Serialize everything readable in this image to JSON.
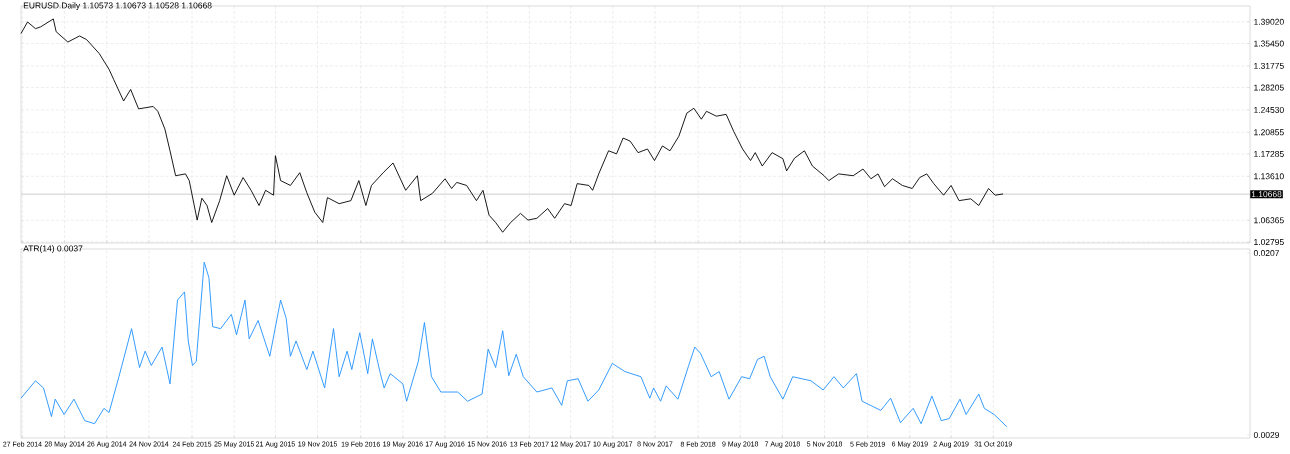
{
  "chart_data": [
    {
      "type": "line",
      "title": "EURUSD.Daily  1.10573 1.10673 1.10528 1.10668",
      "xlim": [
        "2014-02-24",
        "2021-05-01"
      ],
      "xticks": [
        {
          "value": "2014-02-27",
          "label": null
        },
        {
          "value": "2014-05-28",
          "label": null
        },
        {
          "value": "2014-08-26",
          "label": null
        },
        {
          "value": "2014-11-24",
          "label": null
        },
        {
          "value": "2015-02-24",
          "label": null
        },
        {
          "value": "2015-05-25",
          "label": null
        },
        {
          "value": "2015-08-21",
          "label": null
        },
        {
          "value": "2015-11-19",
          "label": null
        },
        {
          "value": "2016-02-19",
          "label": null
        },
        {
          "value": "2016-05-19",
          "label": null
        },
        {
          "value": "2016-08-17",
          "label": null
        },
        {
          "value": "2016-11-15",
          "label": null
        },
        {
          "value": "2017-02-13",
          "label": null
        },
        {
          "value": "2017-05-12",
          "label": null
        },
        {
          "value": "2017-08-10",
          "label": null
        },
        {
          "value": "2017-11-08",
          "label": null
        },
        {
          "value": "2018-02-08",
          "label": null
        },
        {
          "value": "2018-05-09",
          "label": null
        },
        {
          "value": "2018-08-07",
          "label": null
        },
        {
          "value": "2018-11-05",
          "label": null
        },
        {
          "value": "2019-02-05",
          "label": null
        },
        {
          "value": "2019-05-06",
          "label": null
        },
        {
          "value": "2019-08-02",
          "label": null
        },
        {
          "value": "2019-10-31",
          "label": null
        }
      ],
      "ylim": [
        1.0263,
        1.4163
      ],
      "yticks": [
        {
          "value": 1.02795,
          "label": "1.02795"
        },
        {
          "value": 1.06365,
          "label": "1.06365"
        },
        {
          "value": 1.1361,
          "label": "1.13610"
        },
        {
          "value": 1.17285,
          "label": "1.17285"
        },
        {
          "value": 1.20855,
          "label": "1.20855"
        },
        {
          "value": 1.2453,
          "label": "1.24530"
        },
        {
          "value": 1.28205,
          "label": "1.28205"
        },
        {
          "value": 1.31775,
          "label": "1.31775"
        },
        {
          "value": 1.3545,
          "label": "1.35450"
        },
        {
          "value": 1.3902,
          "label": "1.39020"
        }
      ],
      "tick_labels": "y",
      "grid": true,
      "ref_lines": [
        {
          "axis": "y",
          "value": 1.10668,
          "label": "1.10668",
          "color": "#c0c0c0"
        }
      ],
      "series": [
        {
          "color": "#000000",
          "x": [
            "2014-02-24",
            "2014-03-10",
            "2014-03-27",
            "2014-04-07",
            "2014-05-04",
            "2014-05-10",
            "2014-06-04",
            "2014-06-29",
            "2014-07-14",
            "2014-08-10",
            "2014-08-31",
            "2014-09-10",
            "2014-10-01",
            "2014-10-16",
            "2014-11-02",
            "2014-12-03",
            "2014-12-13",
            "2014-12-28",
            "2015-01-08",
            "2015-01-20",
            "2015-02-10",
            "2015-02-18",
            "2015-03-07",
            "2015-03-17",
            "2015-03-28",
            "2015-04-07",
            "2015-04-24",
            "2015-05-09",
            "2015-05-25",
            "2015-06-13",
            "2015-06-30",
            "2015-07-17",
            "2015-07-31",
            "2015-08-17",
            "2015-08-21",
            "2015-09-01",
            "2015-09-22",
            "2015-10-12",
            "2015-10-27",
            "2015-11-13",
            "2015-11-30",
            "2015-12-10",
            "2016-01-04",
            "2016-01-29",
            "2016-02-15",
            "2016-03-01",
            "2016-03-13",
            "2016-04-07",
            "2016-04-28",
            "2016-05-25",
            "2016-06-19",
            "2016-06-26",
            "2016-07-21",
            "2016-08-17",
            "2016-08-31",
            "2016-09-11",
            "2016-10-02",
            "2016-10-23",
            "2016-11-06",
            "2016-11-19",
            "2016-12-03",
            "2016-12-18",
            "2017-01-04",
            "2017-01-25",
            "2017-02-10",
            "2017-03-01",
            "2017-03-24",
            "2017-04-08",
            "2017-04-29",
            "2017-05-13",
            "2017-05-26",
            "2017-06-20",
            "2017-06-28",
            "2017-07-11",
            "2017-08-01",
            "2017-08-18",
            "2017-09-01",
            "2017-09-16",
            "2017-10-03",
            "2017-10-23",
            "2017-11-07",
            "2017-11-24",
            "2017-12-10",
            "2017-12-29",
            "2018-01-15",
            "2018-01-30",
            "2018-02-15",
            "2018-02-26",
            "2018-03-19",
            "2018-04-09",
            "2018-04-25",
            "2018-05-14",
            "2018-05-31",
            "2018-06-10",
            "2018-06-25",
            "2018-07-16",
            "2018-08-08",
            "2018-08-16",
            "2018-09-02",
            "2018-09-23",
            "2018-10-10",
            "2018-11-04",
            "2018-11-14",
            "2018-12-05",
            "2019-01-05",
            "2019-01-26",
            "2019-02-12",
            "2019-02-27",
            "2019-03-13",
            "2019-03-30",
            "2019-04-20",
            "2019-05-11",
            "2019-05-27",
            "2019-06-11",
            "2019-06-26",
            "2019-07-17",
            "2019-08-02",
            "2019-08-19",
            "2019-09-13",
            "2019-09-30",
            "2019-10-21",
            "2019-11-04",
            "2019-11-21"
          ],
          "values": [
            1.371,
            1.39,
            1.379,
            1.382,
            1.395,
            1.374,
            1.357,
            1.367,
            1.361,
            1.338,
            1.312,
            1.295,
            1.26,
            1.279,
            1.247,
            1.251,
            1.243,
            1.214,
            1.178,
            1.137,
            1.14,
            1.129,
            1.064,
            1.1,
            1.088,
            1.06,
            1.096,
            1.137,
            1.105,
            1.134,
            1.113,
            1.088,
            1.113,
            1.105,
            1.17,
            1.129,
            1.121,
            1.142,
            1.109,
            1.077,
            1.06,
            1.101,
            1.091,
            1.096,
            1.129,
            1.088,
            1.121,
            1.142,
            1.158,
            1.113,
            1.137,
            1.096,
            1.108,
            1.132,
            1.116,
            1.126,
            1.121,
            1.096,
            1.113,
            1.072,
            1.06,
            1.044,
            1.06,
            1.075,
            1.064,
            1.067,
            1.083,
            1.067,
            1.091,
            1.088,
            1.124,
            1.121,
            1.113,
            1.14,
            1.178,
            1.173,
            1.199,
            1.194,
            1.175,
            1.181,
            1.162,
            1.186,
            1.178,
            1.202,
            1.24,
            1.248,
            1.23,
            1.243,
            1.235,
            1.238,
            1.21,
            1.181,
            1.162,
            1.175,
            1.153,
            1.175,
            1.165,
            1.145,
            1.166,
            1.178,
            1.153,
            1.137,
            1.129,
            1.14,
            1.137,
            1.148,
            1.132,
            1.14,
            1.119,
            1.132,
            1.121,
            1.116,
            1.134,
            1.14,
            1.124,
            1.105,
            1.121,
            1.096,
            1.099,
            1.088,
            1.116,
            1.105,
            1.107
          ]
        }
      ]
    },
    {
      "type": "line",
      "title": "ATR(14) 0.0037",
      "xlim": [
        "2014-02-24",
        "2021-05-01"
      ],
      "xticks": [
        {
          "value": "2014-02-27",
          "label": "27 Feb 2014"
        },
        {
          "value": "2014-05-28",
          "label": "28 May 2014"
        },
        {
          "value": "2014-08-26",
          "label": "26 Aug 2014"
        },
        {
          "value": "2014-11-24",
          "label": "24 Nov 2014"
        },
        {
          "value": "2015-02-24",
          "label": "24 Feb 2015"
        },
        {
          "value": "2015-05-25",
          "label": "25 May 2015"
        },
        {
          "value": "2015-08-21",
          "label": "21 Aug 2015"
        },
        {
          "value": "2015-11-19",
          "label": "19 Nov 2015"
        },
        {
          "value": "2016-02-19",
          "label": "19 Feb 2016"
        },
        {
          "value": "2016-05-19",
          "label": "19 May 2016"
        },
        {
          "value": "2016-08-17",
          "label": "17 Aug 2016"
        },
        {
          "value": "2016-11-15",
          "label": "15 Nov 2016"
        },
        {
          "value": "2017-02-13",
          "label": "13 Feb 2017"
        },
        {
          "value": "2017-05-12",
          "label": "12 May 2017"
        },
        {
          "value": "2017-08-10",
          "label": "10 Aug 2017"
        },
        {
          "value": "2017-11-08",
          "label": "8 Nov 2017"
        },
        {
          "value": "2018-02-08",
          "label": "8 Feb 2018"
        },
        {
          "value": "2018-05-09",
          "label": "9 May 2018"
        },
        {
          "value": "2018-08-07",
          "label": "7 Aug 2018"
        },
        {
          "value": "2018-11-05",
          "label": "5 Nov 2018"
        },
        {
          "value": "2019-02-05",
          "label": "5 Feb 2019"
        },
        {
          "value": "2019-05-06",
          "label": "6 May 2019"
        },
        {
          "value": "2019-08-02",
          "label": "2 Aug 2019"
        },
        {
          "value": "2019-10-31",
          "label": "31 Oct 2019"
        }
      ],
      "ylim": [
        0.0026,
        0.0211
      ],
      "yticks": [
        0.0029,
        0.0207
      ],
      "grid": "x",
      "series": [
        {
          "color": "#1e90ff",
          "x": [
            "2014-02-24",
            "2014-03-27",
            "2014-04-13",
            "2014-04-30",
            "2014-05-08",
            "2014-05-27",
            "2014-06-17",
            "2014-07-10",
            "2014-07-31",
            "2014-08-20",
            "2014-08-31",
            "2014-09-21",
            "2014-10-18",
            "2014-11-04",
            "2014-11-16",
            "2014-11-29",
            "2014-12-22",
            "2015-01-08",
            "2015-01-24",
            "2015-02-08",
            "2015-02-16",
            "2015-02-25",
            "2015-03-05",
            "2015-03-22",
            "2015-04-01",
            "2015-04-09",
            "2015-04-26",
            "2015-05-19",
            "2015-05-30",
            "2015-06-17",
            "2015-06-26",
            "2015-07-15",
            "2015-08-09",
            "2015-09-01",
            "2015-09-13",
            "2015-09-22",
            "2015-10-04",
            "2015-10-27",
            "2015-11-09",
            "2015-12-04",
            "2015-12-23",
            "2016-01-04",
            "2016-01-21",
            "2016-01-31",
            "2016-02-17",
            "2016-03-05",
            "2016-03-15",
            "2016-04-01",
            "2016-04-09",
            "2016-04-22",
            "2016-05-19",
            "2016-05-27",
            "2016-06-21",
            "2016-07-04",
            "2016-07-19",
            "2016-08-08",
            "2016-09-13",
            "2016-10-04",
            "2016-11-04",
            "2016-11-17",
            "2016-12-03",
            "2016-12-18",
            "2016-12-31",
            "2017-01-16",
            "2017-01-31",
            "2017-03-01",
            "2017-04-02",
            "2017-04-23",
            "2017-05-05",
            "2017-05-28",
            "2017-06-18",
            "2017-07-11",
            "2017-08-09",
            "2017-09-05",
            "2017-10-09",
            "2017-10-28",
            "2017-11-05",
            "2017-11-20",
            "2017-12-02",
            "2017-12-27",
            "2018-01-19",
            "2018-02-01",
            "2018-02-13",
            "2018-03-08",
            "2018-03-25",
            "2018-04-15",
            "2018-05-12",
            "2018-05-29",
            "2018-06-15",
            "2018-06-29",
            "2018-07-12",
            "2018-08-08",
            "2018-08-29",
            "2018-10-07",
            "2018-11-02",
            "2018-11-25",
            "2018-12-15",
            "2019-01-12",
            "2019-01-24",
            "2019-03-05",
            "2019-03-26",
            "2019-04-16",
            "2019-05-13",
            "2019-05-30",
            "2019-06-22",
            "2019-07-12",
            "2019-07-29",
            "2019-08-21",
            "2019-09-03",
            "2019-09-30",
            "2019-10-12",
            "2019-11-02",
            "2019-11-29"
          ],
          "values": [
            0.0065,
            0.0082,
            0.0075,
            0.0047,
            0.0064,
            0.0049,
            0.0064,
            0.0043,
            0.004,
            0.0055,
            0.0051,
            0.0086,
            0.0133,
            0.0095,
            0.0111,
            0.0097,
            0.0115,
            0.0079,
            0.0161,
            0.0169,
            0.0121,
            0.0097,
            0.0101,
            0.0198,
            0.0183,
            0.0135,
            0.0133,
            0.0147,
            0.0127,
            0.0161,
            0.0123,
            0.0141,
            0.0106,
            0.0161,
            0.0143,
            0.0106,
            0.0121,
            0.0093,
            0.0111,
            0.0075,
            0.0133,
            0.0086,
            0.0111,
            0.0093,
            0.0129,
            0.0089,
            0.0123,
            0.0089,
            0.0075,
            0.0089,
            0.0079,
            0.0062,
            0.0101,
            0.0139,
            0.0086,
            0.0071,
            0.0071,
            0.0062,
            0.0069,
            0.0113,
            0.0095,
            0.0131,
            0.0087,
            0.0108,
            0.0086,
            0.0071,
            0.0075,
            0.0058,
            0.0082,
            0.0084,
            0.0062,
            0.0073,
            0.0099,
            0.0091,
            0.0086,
            0.0065,
            0.0075,
            0.0062,
            0.0077,
            0.0064,
            0.0097,
            0.0115,
            0.0109,
            0.0086,
            0.0091,
            0.0064,
            0.0086,
            0.0084,
            0.0103,
            0.0106,
            0.0086,
            0.0064,
            0.0086,
            0.0082,
            0.0073,
            0.0086,
            0.0075,
            0.0089,
            0.0062,
            0.0053,
            0.0065,
            0.0041,
            0.0055,
            0.004,
            0.0067,
            0.0043,
            0.0045,
            0.0064,
            0.0049,
            0.0069,
            0.0055,
            0.0049,
            0.0037
          ]
        }
      ]
    }
  ]
}
